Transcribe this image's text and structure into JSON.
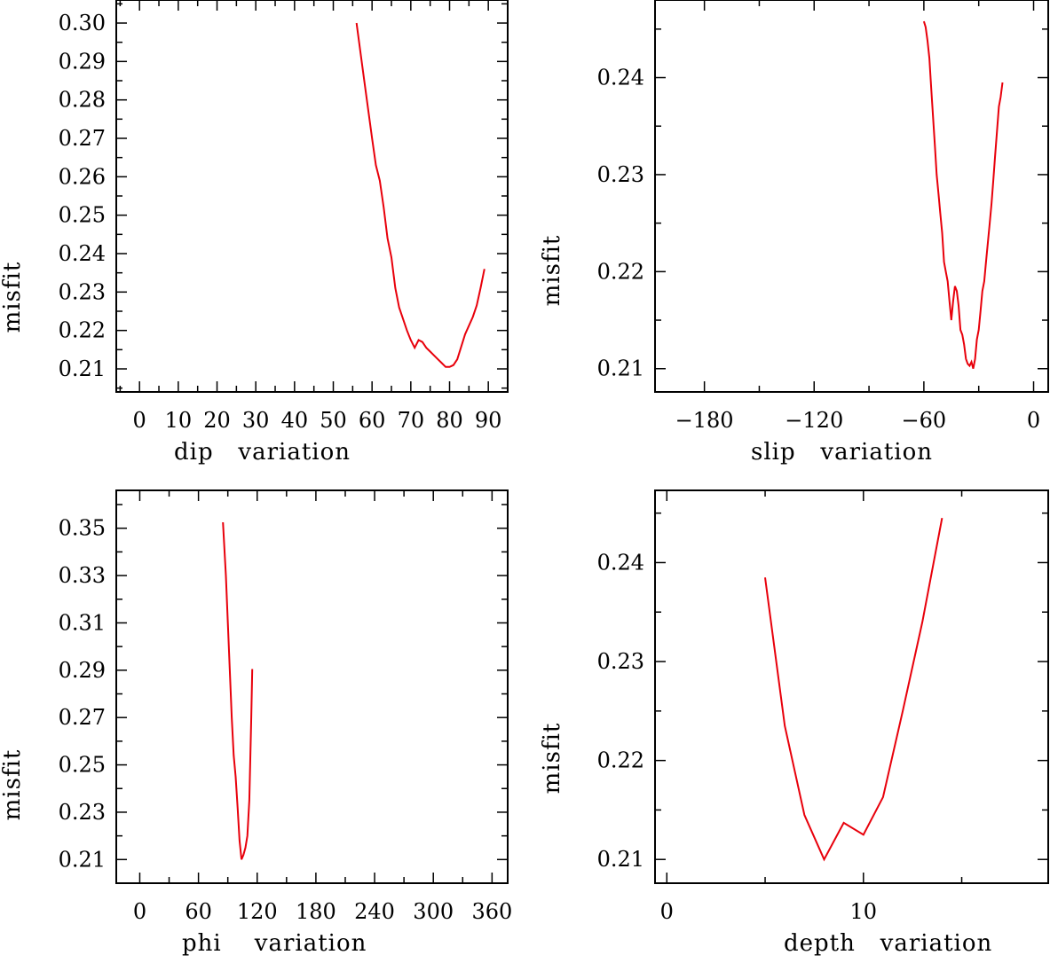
{
  "colors": {
    "series": "#e8000b",
    "axis": "#000000"
  },
  "chart_data": [
    {
      "type": "line",
      "xlabel": "dip   variation",
      "ylabel": "misfit",
      "xlim": [
        -6,
        95
      ],
      "ylim": [
        0.204,
        0.306
      ],
      "xticks": [
        0,
        10,
        20,
        30,
        40,
        50,
        60,
        70,
        80,
        90
      ],
      "xtick_labels": [
        "0",
        "10",
        "20",
        "30",
        "40",
        "50",
        "60",
        "70",
        "80",
        "90"
      ],
      "yticks": [
        0.21,
        0.22,
        0.23,
        0.24,
        0.25,
        0.26,
        0.27,
        0.28,
        0.29,
        0.3
      ],
      "ytick_labels": [
        "0.21",
        "0.22",
        "0.23",
        "0.24",
        "0.25",
        "0.26",
        "0.27",
        "0.28",
        "0.29",
        "0.30"
      ],
      "grid": false,
      "series": [
        {
          "x": [
            56,
            58,
            60,
            61,
            62,
            63,
            64,
            65,
            66,
            67,
            68,
            69,
            70,
            71,
            72,
            73,
            74,
            75,
            76,
            77,
            78,
            79,
            80,
            81,
            82,
            84,
            86,
            87,
            88,
            89
          ],
          "y": [
            0.3,
            0.285,
            0.27,
            0.263,
            0.259,
            0.252,
            0.244,
            0.239,
            0.231,
            0.226,
            0.223,
            0.22,
            0.2175,
            0.2155,
            0.2175,
            0.217,
            0.2155,
            0.2145,
            0.2135,
            0.2125,
            0.2115,
            0.2105,
            0.2105,
            0.211,
            0.2125,
            0.219,
            0.2235,
            0.2265,
            0.231,
            0.236
          ]
        }
      ]
    },
    {
      "type": "line",
      "xlabel": "slip   variation",
      "ylabel": "misfit",
      "xlim": [
        -207,
        8
      ],
      "ylim": [
        0.2076,
        0.248
      ],
      "xticks": [
        -180,
        -120,
        -60,
        0
      ],
      "xtick_labels": [
        "−180",
        "−120",
        "−60",
        "0"
      ],
      "yticks": [
        0.21,
        0.22,
        0.23,
        0.24
      ],
      "ytick_labels": [
        "0.21",
        "0.22",
        "0.23",
        "0.24"
      ],
      "grid": false,
      "series": [
        {
          "x": [
            -60,
            -59,
            -58,
            -57,
            -56,
            -55,
            -54,
            -53,
            -52,
            -51,
            -50,
            -49,
            -48,
            -47,
            -46,
            -45,
            -44,
            -43,
            -42,
            -41,
            -40,
            -39,
            -38,
            -37,
            -36,
            -35,
            -34,
            -33,
            -32,
            -31,
            -30,
            -29,
            -28,
            -27,
            -26,
            -25,
            -24,
            -23,
            -22,
            -21,
            -20,
            -19,
            -18,
            -17
          ],
          "y": [
            0.2458,
            0.2452,
            0.2438,
            0.242,
            0.239,
            0.236,
            0.233,
            0.23,
            0.228,
            0.226,
            0.224,
            0.221,
            0.22,
            0.219,
            0.217,
            0.215,
            0.217,
            0.2185,
            0.218,
            0.2165,
            0.214,
            0.2135,
            0.2125,
            0.211,
            0.2105,
            0.2103,
            0.2107,
            0.21,
            0.211,
            0.213,
            0.214,
            0.216,
            0.218,
            0.219,
            0.221,
            0.223,
            0.225,
            0.227,
            0.2295,
            0.232,
            0.2345,
            0.237,
            0.238,
            0.2395
          ]
        }
      ]
    },
    {
      "type": "line",
      "xlabel": "phi    variation",
      "ylabel": "misfit",
      "xlim": [
        -24,
        376
      ],
      "ylim": [
        0.2,
        0.366
      ],
      "xticks": [
        0,
        60,
        120,
        180,
        240,
        300,
        360
      ],
      "xtick_labels": [
        "0",
        "60",
        "120",
        "180",
        "240",
        "300",
        "360"
      ],
      "yticks": [
        0.21,
        0.23,
        0.25,
        0.27,
        0.29,
        0.31,
        0.33,
        0.35
      ],
      "ytick_labels": [
        "0.21",
        "0.23",
        "0.25",
        "0.27",
        "0.29",
        "0.31",
        "0.33",
        "0.35"
      ],
      "grid": false,
      "series": [
        {
          "x": [
            85,
            88,
            90,
            92,
            94,
            96,
            98,
            100,
            102,
            104,
            106,
            108,
            110,
            112,
            114,
            115
          ],
          "y": [
            0.3525,
            0.33,
            0.31,
            0.29,
            0.27,
            0.254,
            0.245,
            0.232,
            0.218,
            0.21,
            0.212,
            0.215,
            0.22,
            0.235,
            0.27,
            0.2905
          ]
        }
      ]
    },
    {
      "type": "line",
      "xlabel": "depth   variation",
      "ylabel": "misfit",
      "xlim": [
        -0.6,
        19.4
      ],
      "ylim": [
        0.2076,
        0.2473
      ],
      "xticks": [
        0,
        10
      ],
      "xtick_labels": [
        "0",
        "10"
      ],
      "yticks": [
        0.21,
        0.22,
        0.23,
        0.24
      ],
      "ytick_labels": [
        "0.21",
        "0.22",
        "0.23",
        "0.24"
      ],
      "grid": false,
      "series": [
        {
          "x": [
            5,
            6,
            7,
            8,
            9,
            10,
            11,
            12,
            13,
            14
          ],
          "y": [
            0.2385,
            0.2235,
            0.2145,
            0.21,
            0.2137,
            0.2125,
            0.2163,
            0.225,
            0.234,
            0.2445
          ]
        }
      ]
    }
  ]
}
